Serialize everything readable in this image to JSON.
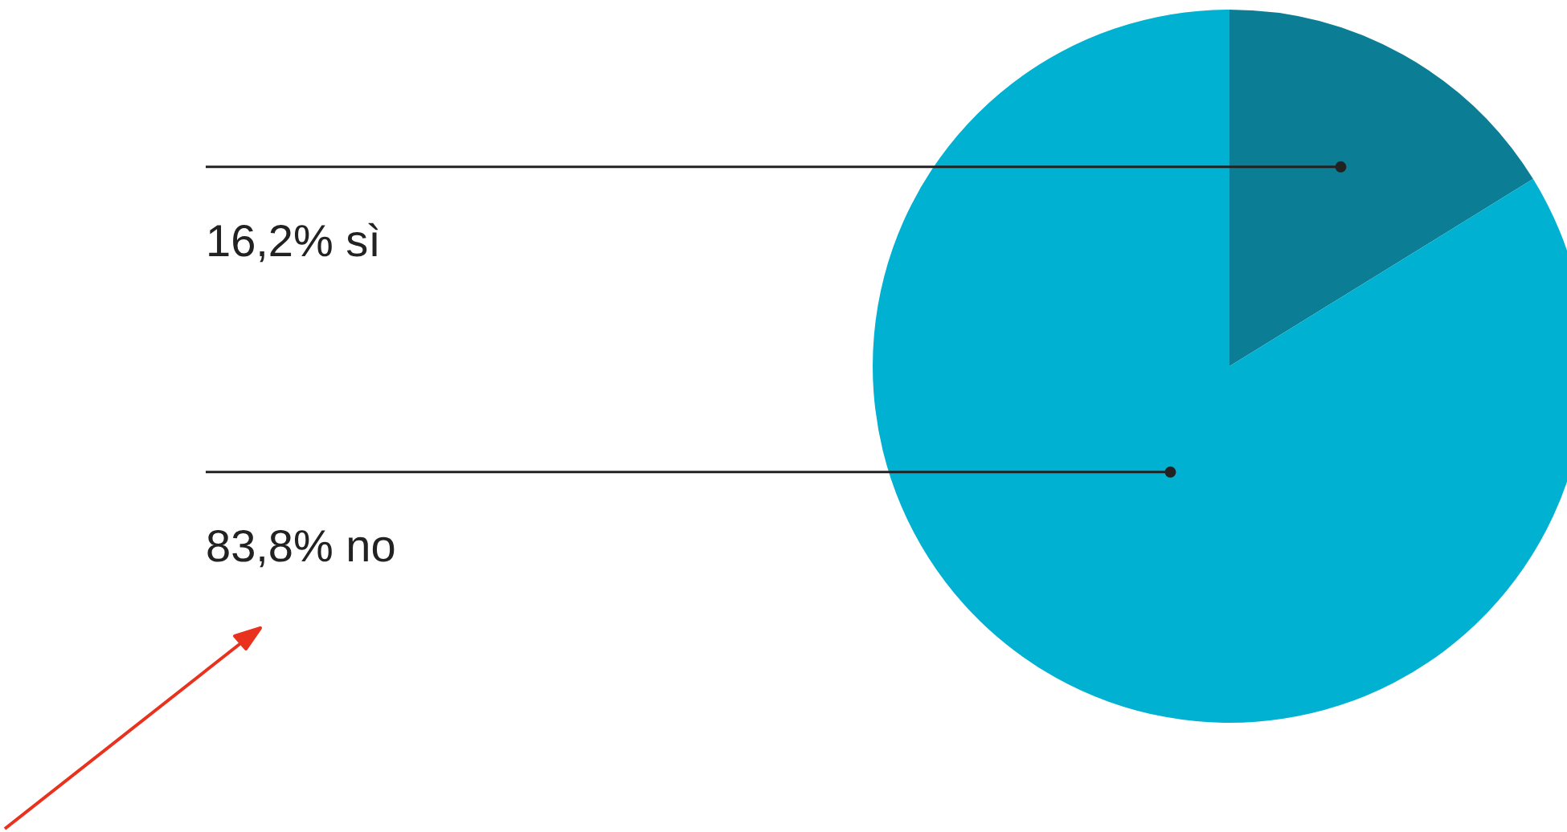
{
  "chart_data": {
    "type": "pie",
    "categories": [
      "sì",
      "no"
    ],
    "values": [
      16.2,
      83.8
    ],
    "colors": [
      "#0b7d95",
      "#00b1d1"
    ],
    "value_labels": [
      "16,2%",
      "83,8%"
    ],
    "legend": false
  }
}
